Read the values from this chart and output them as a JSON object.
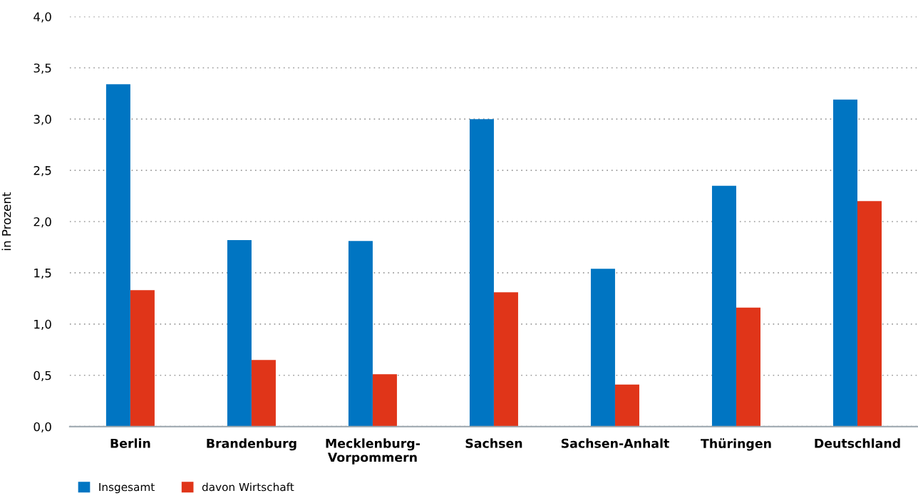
{
  "chart_data": {
    "type": "bar",
    "ylabel": "in Prozent",
    "categories": [
      "Berlin",
      "Brandenburg",
      "Mecklenburg-\nVorpommern",
      "Sachsen",
      "Sachsen-Anhalt",
      "Thüringen",
      "Deutschland"
    ],
    "series": [
      {
        "name": "Insgesamt",
        "color": "#0075c2",
        "values": [
          3.34,
          1.82,
          1.81,
          3.0,
          1.54,
          2.35,
          3.19
        ]
      },
      {
        "name": "davon Wirtschaft",
        "color": "#e03519",
        "values": [
          1.33,
          0.65,
          0.51,
          1.31,
          0.41,
          1.16,
          2.2
        ]
      }
    ],
    "ylim": [
      0,
      4
    ],
    "yticks": [
      {
        "value": 0,
        "label": "0,0"
      },
      {
        "value": 0.5,
        "label": "0,5"
      },
      {
        "value": 1,
        "label": "1,0"
      },
      {
        "value": 1.5,
        "label": "1,5"
      },
      {
        "value": 2,
        "label": "2,0"
      },
      {
        "value": 2.5,
        "label": "2,5"
      },
      {
        "value": 3,
        "label": "3,0"
      },
      {
        "value": 3.5,
        "label": "3,5"
      },
      {
        "value": 4,
        "label": "4,0"
      }
    ],
    "grid": "y",
    "legend": "bottom left"
  }
}
